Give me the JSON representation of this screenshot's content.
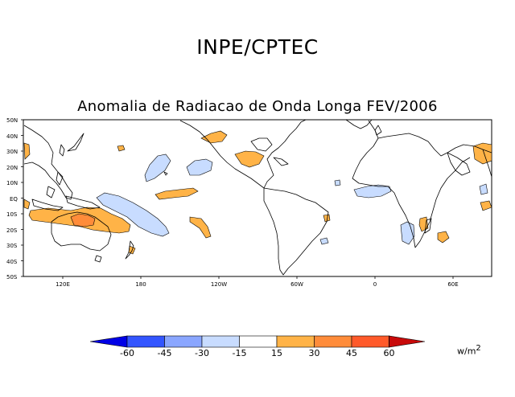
{
  "header": {
    "title": "INPE/CPTEC"
  },
  "map": {
    "title": "Anomalia de Radiacao de Onda Longa FEV/2006",
    "lat_labels": [
      "50N",
      "40N",
      "30N",
      "20N",
      "10N",
      "EQ",
      "10S",
      "20S",
      "30S",
      "40S",
      "50S"
    ],
    "lon_labels": [
      "120E",
      "180",
      "120W",
      "60W",
      "0",
      "60E"
    ]
  },
  "legend": {
    "labels": [
      "-60",
      "-45",
      "-30",
      "-15",
      "15",
      "30",
      "45",
      "60"
    ],
    "colors": [
      "#0000e6",
      "#3355ff",
      "#8aa6ff",
      "#c8dcff",
      "#ffffff",
      "#ffb347",
      "#ff8c3a",
      "#ff5a2a",
      "#e8281e",
      "#c80a0a"
    ],
    "units_base": "w/m",
    "units_exp": "2"
  }
}
